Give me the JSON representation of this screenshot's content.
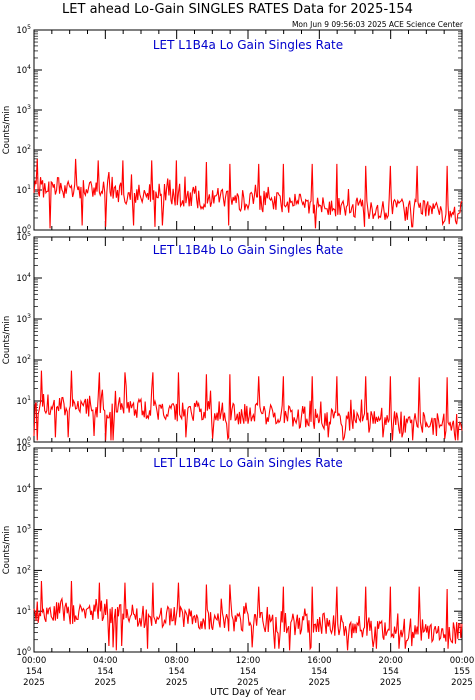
{
  "page": {
    "title": "LET ahead Lo-Gain SINGLES RATES Data for 2025-154",
    "timestamp": "Mon Jun  9 09:56:03 2025 ACE Science Center",
    "xlabel": "UTC Day of Year"
  },
  "colors": {
    "series": "#ff0000",
    "panel_title": "#0000cc",
    "axis": "#000000",
    "background": "#ffffff"
  },
  "chart_data": [
    {
      "type": "line",
      "title": "LET L1B4a Lo Gain Singles Rate",
      "ylabel": "Counts/min",
      "yscale": "log",
      "ylim": [
        1,
        100000
      ],
      "y_ticks": [
        {
          "v": 1,
          "exp": "0"
        },
        {
          "v": 10,
          "exp": "1"
        },
        {
          "v": 100,
          "exp": "2"
        },
        {
          "v": 1000,
          "exp": "3"
        },
        {
          "v": 10000,
          "exp": "4"
        },
        {
          "v": 100000,
          "exp": "5"
        }
      ],
      "xlim": [
        "00:00",
        "24:00"
      ],
      "x_ticks": [],
      "baseline_start": 12,
      "baseline_end": 2.5,
      "spike_times": [
        "00:10",
        "02:20",
        "03:35",
        "05:00",
        "06:35",
        "08:00",
        "09:40",
        "11:00",
        "12:35",
        "14:00",
        "15:35",
        "17:00",
        "18:35",
        "20:00",
        "21:30",
        "23:10"
      ],
      "spike_values": [
        60,
        60,
        55,
        55,
        55,
        55,
        50,
        45,
        45,
        45,
        45,
        45,
        40,
        40,
        40,
        40
      ],
      "series": [
        {
          "points": []
        }
      ]
    },
    {
      "type": "line",
      "title": "LET L1B4b Lo Gain Singles Rate",
      "ylabel": "Counts/min",
      "yscale": "log",
      "ylim": [
        1,
        100000
      ],
      "y_ticks": [
        {
          "v": 1,
          "exp": "0"
        },
        {
          "v": 10,
          "exp": "1"
        },
        {
          "v": 100,
          "exp": "2"
        },
        {
          "v": 1000,
          "exp": "3"
        },
        {
          "v": 10000,
          "exp": "4"
        },
        {
          "v": 100000,
          "exp": "5"
        }
      ],
      "xlim": [
        "00:00",
        "24:00"
      ],
      "x_ticks": [],
      "baseline_start": 9,
      "baseline_end": 2.5,
      "spike_times": [
        "00:25",
        "02:05",
        "03:40",
        "05:05",
        "06:40",
        "08:05",
        "09:40",
        "11:00",
        "12:35",
        "14:00",
        "15:35",
        "17:00",
        "18:35",
        "20:00",
        "21:35",
        "23:10"
      ],
      "spike_values": [
        55,
        55,
        50,
        50,
        50,
        50,
        45,
        45,
        40,
        40,
        40,
        40,
        40,
        40,
        38,
        38
      ],
      "series": [
        {
          "points": []
        }
      ]
    },
    {
      "type": "line",
      "title": "LET L1B4c Lo Gain Singles Rate",
      "ylabel": "Counts/min",
      "yscale": "log",
      "ylim": [
        1,
        100000
      ],
      "y_ticks": [
        {
          "v": 1,
          "exp": "0"
        },
        {
          "v": 10,
          "exp": "1"
        },
        {
          "v": 100,
          "exp": "2"
        },
        {
          "v": 1000,
          "exp": "3"
        },
        {
          "v": 10000,
          "exp": "4"
        },
        {
          "v": 100000,
          "exp": "5"
        }
      ],
      "xlim": [
        "00:00",
        "24:00"
      ],
      "x_ticks": [
        {
          "t": "00:00",
          "lines": [
            "00:00",
            "154",
            "2025"
          ]
        },
        {
          "t": "04:00",
          "lines": [
            "04:00",
            "154",
            "2025"
          ]
        },
        {
          "t": "08:00",
          "lines": [
            "08:00",
            "154",
            "2025"
          ]
        },
        {
          "t": "12:00",
          "lines": [
            "12:00",
            "154",
            "2025"
          ]
        },
        {
          "t": "16:00",
          "lines": [
            "16:00",
            "154",
            "2025"
          ]
        },
        {
          "t": "20:00",
          "lines": [
            "20:00",
            "154",
            "2025"
          ]
        },
        {
          "t": "24:00",
          "lines": [
            "00:00",
            "155",
            "2025"
          ]
        }
      ],
      "baseline_start": 10,
      "baseline_end": 3,
      "spike_times": [
        "00:25",
        "02:05",
        "03:40",
        "05:05",
        "06:40",
        "08:05",
        "09:40",
        "11:00",
        "12:35",
        "14:00",
        "15:35",
        "17:00",
        "18:35",
        "20:00",
        "21:35",
        "23:10"
      ],
      "spike_values": [
        55,
        55,
        50,
        50,
        50,
        50,
        45,
        45,
        40,
        40,
        40,
        40,
        40,
        40,
        40,
        35
      ],
      "series": [
        {
          "points": []
        }
      ]
    }
  ]
}
